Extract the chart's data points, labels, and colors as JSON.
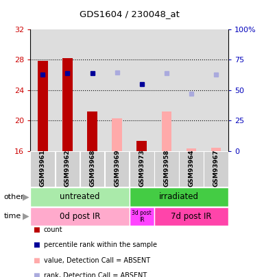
{
  "title": "GDS1604 / 230048_at",
  "samples": [
    "GSM93961",
    "GSM93962",
    "GSM93968",
    "GSM93969",
    "GSM93973",
    "GSM93958",
    "GSM93964",
    "GSM93967"
  ],
  "bar_values_red": [
    27.8,
    28.2,
    21.2,
    null,
    17.3,
    null,
    null,
    null
  ],
  "bar_values_pink": [
    null,
    null,
    null,
    20.3,
    null,
    21.2,
    16.3,
    16.4
  ],
  "dot_values_blue": [
    26.0,
    26.2,
    26.2,
    null,
    24.8,
    null,
    null,
    null
  ],
  "dot_values_lightblue": [
    null,
    null,
    null,
    26.3,
    null,
    26.2,
    23.5,
    26.0
  ],
  "y_min": 16,
  "y_max": 32,
  "y_ticks": [
    16,
    20,
    24,
    28,
    32
  ],
  "y2_ticks": [
    0,
    25,
    50,
    75,
    100
  ],
  "bar_color_red": "#BB0000",
  "bar_color_pink": "#FFAAAA",
  "dot_color_blue": "#000099",
  "dot_color_lightblue": "#AAAADD",
  "label_color_left": "#CC0000",
  "label_color_right": "#0000BB",
  "col_bg_color": "#DDDDDD",
  "group1_label": "untreated",
  "group1_color": "#AAEAAA",
  "group2_label": "irradiated",
  "group2_color": "#44CC44",
  "time1_label": "0d post IR",
  "time1_color": "#FFAACC",
  "time2_label": "3d post\nIR",
  "time2_color": "#FF44FF",
  "time3_label": "7d post IR",
  "time3_color": "#FF44AA",
  "legend_items": [
    {
      "label": "count",
      "color": "#BB0000"
    },
    {
      "label": "percentile rank within the sample",
      "color": "#000099"
    },
    {
      "label": "value, Detection Call = ABSENT",
      "color": "#FFAAAA"
    },
    {
      "label": "rank, Detection Call = ABSENT",
      "color": "#AAAADD"
    }
  ]
}
